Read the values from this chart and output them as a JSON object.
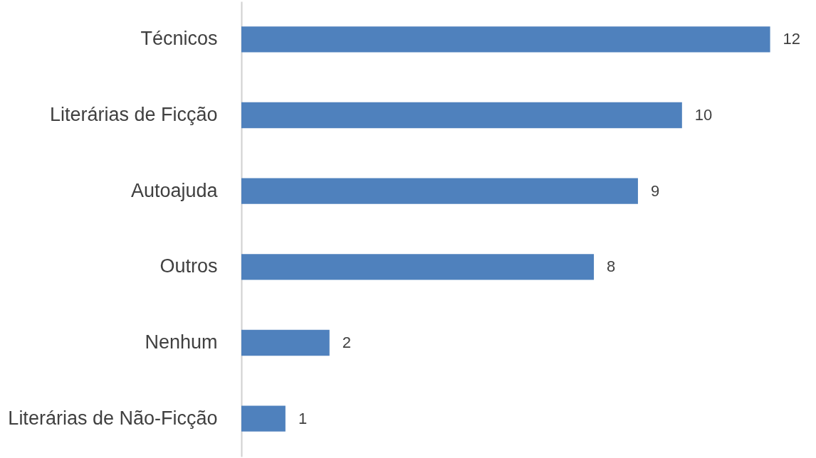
{
  "chart_data": {
    "type": "bar",
    "orientation": "horizontal",
    "categories": [
      "Técnicos",
      "Literárias de Ficção",
      "Autoajuda",
      "Outros",
      "Nenhum",
      "Literárias de Não-Ficção"
    ],
    "values": [
      12,
      10,
      9,
      8,
      2,
      1
    ],
    "color": "#4f81bd",
    "data_labels": true,
    "tick_labels": "y"
  }
}
